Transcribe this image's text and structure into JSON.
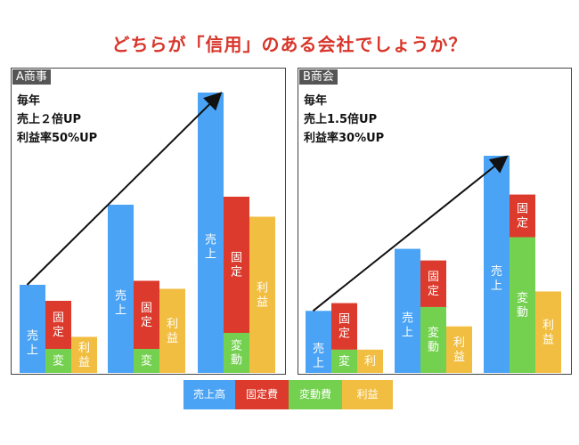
{
  "title": "どちらが「信用」のある会社でしょうか？",
  "colors": {
    "sales": "#4aa3f5",
    "fixed": "#dc3a2c",
    "variable": "#73d14f",
    "profit": "#f2be41"
  },
  "panels": [
    {
      "name": "A商事",
      "notes": [
        "毎年",
        "売上２倍UP",
        "利益率50%UP"
      ]
    },
    {
      "name": "B商会",
      "notes": [
        "毎年",
        "売上1.5倍UP",
        "利益率30%UP"
      ]
    }
  ],
  "legend": [
    "売上高",
    "固定費",
    "変動費",
    "利益"
  ],
  "chart_data": [
    {
      "type": "bar",
      "title": "A商事",
      "categories": [
        "",
        "",
        ""
      ],
      "series": [
        {
          "name": "売上高",
          "values": [
            22,
            42,
            70
          ]
        },
        {
          "name": "固定費",
          "values": [
            12,
            17,
            34
          ]
        },
        {
          "name": "変動費",
          "values": [
            6,
            6,
            10
          ]
        },
        {
          "name": "利益",
          "values": [
            9,
            21,
            39
          ]
        }
      ],
      "bar_labels": {
        "sales": "売上",
        "fixed": "固定",
        "variable": [
          "変",
          "変",
          "変動"
        ],
        "profit": "利益"
      },
      "ylim": [
        0,
        70
      ]
    },
    {
      "type": "bar",
      "title": "B商会",
      "categories": [
        "",
        "",
        ""
      ],
      "series": [
        {
          "name": "売上高",
          "values": [
            16,
            32,
            56
          ]
        },
        {
          "name": "固定費",
          "values": [
            12,
            12,
            11
          ]
        },
        {
          "name": "変動費",
          "values": [
            6,
            17,
            35
          ]
        },
        {
          "name": "利益",
          "values": [
            6,
            12,
            21
          ]
        }
      ],
      "bar_labels": {
        "sales": "売上",
        "fixed": "固定",
        "variable": [
          "変",
          "変動",
          "変動"
        ],
        "profit": "利益"
      },
      "ylim": [
        0,
        56
      ]
    }
  ]
}
